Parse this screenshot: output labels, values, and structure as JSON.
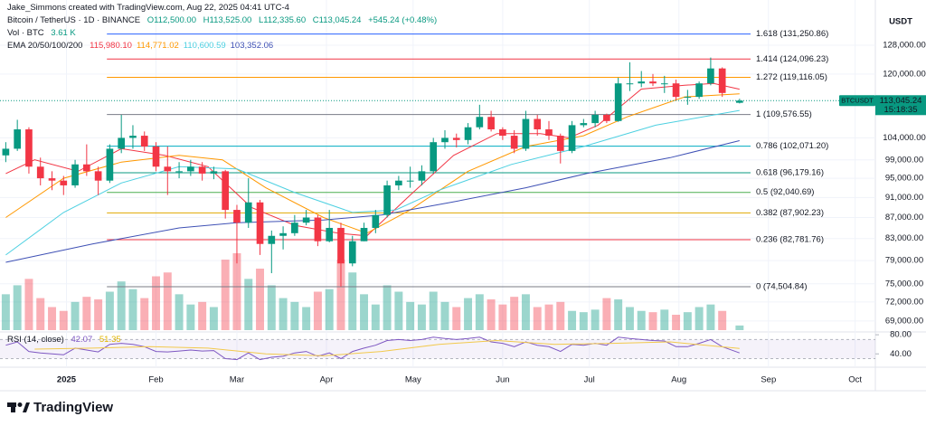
{
  "chart_data": {
    "type": "candlestick",
    "scale": "log",
    "header": {
      "author": "Jake_Simmons created with TradingView.com, Aug 22, 2025 04:41 UTC-4",
      "symbol": "Bitcoin / TetherUS · 1D · BINANCE",
      "ohlc": [
        "O112,500.00",
        "H113,525.00",
        "L112,335.60",
        "C113,045.24",
        "+545.24 (+0.48%)"
      ],
      "vol_label": "Vol · BTC",
      "vol_value": "3.61 K",
      "ema_label": "EMA 20/50/100/200"
    },
    "currency": "USDT",
    "up_color": "#089981",
    "down_color": "#f23645",
    "xlim": [
      -2,
      301
    ],
    "xticks": [
      {
        "value": 21,
        "label": "2025"
      },
      {
        "value": 52,
        "label": "Feb"
      },
      {
        "value": 80,
        "label": "Mar"
      },
      {
        "value": 111,
        "label": "Apr"
      },
      {
        "value": 141,
        "label": "May"
      },
      {
        "value": 172,
        "label": "Jun"
      },
      {
        "value": 202,
        "label": "Jul"
      },
      {
        "value": 233,
        "label": "Aug"
      },
      {
        "value": 264,
        "label": "Sep"
      },
      {
        "value": 294,
        "label": "Oct"
      }
    ],
    "ylim": [
      67600,
      137400
    ],
    "yticks": [
      {
        "value": 128000,
        "label": "128,000.00"
      },
      {
        "value": 120000,
        "label": "120,000.00"
      },
      {
        "value": 104000,
        "label": "104,000.00"
      },
      {
        "value": 99000,
        "label": "99,000.00"
      },
      {
        "value": 95000,
        "label": "95,000.00"
      },
      {
        "value": 91000,
        "label": "91,000.00"
      },
      {
        "value": 87000,
        "label": "87,000.00"
      },
      {
        "value": 83000,
        "label": "83,000.00"
      },
      {
        "value": 79000,
        "label": "79,000.00"
      },
      {
        "value": 75000,
        "label": "75,000.00"
      },
      {
        "value": 72000,
        "label": "72,000.00"
      },
      {
        "value": 69000,
        "label": "69,000.00"
      }
    ],
    "x": [
      0,
      4,
      8,
      12,
      16,
      20,
      24,
      28,
      32,
      36,
      40,
      44,
      48,
      52,
      56,
      60,
      64,
      68,
      72,
      76,
      80,
      84,
      88,
      92,
      96,
      100,
      104,
      108,
      112,
      116,
      120,
      124,
      128,
      132,
      136,
      140,
      144,
      148,
      152,
      156,
      160,
      164,
      168,
      172,
      176,
      180,
      184,
      188,
      192,
      196,
      200,
      204,
      208,
      212,
      216,
      220,
      224,
      228,
      232,
      236,
      240,
      244,
      248,
      254
    ],
    "open": [
      100000,
      101500,
      106000,
      97500,
      95000,
      94500,
      93500,
      98000,
      96500,
      94500,
      101500,
      104000,
      104500,
      102000,
      97500,
      96500,
      96500,
      97500,
      96000,
      96500,
      88500,
      86000,
      90000,
      82000,
      83500,
      84000,
      86000,
      87000,
      82500,
      85000,
      78500,
      82500,
      85000,
      87500,
      93500,
      94500,
      94500,
      96500,
      103000,
      104000,
      103500,
      106500,
      109000,
      106000,
      104500,
      101500,
      108500,
      106000,
      104500,
      101000,
      107000,
      107500,
      109500,
      108000,
      117500,
      117500,
      118000,
      117500,
      117500,
      114000,
      114000,
      117500,
      121500,
      112500
    ],
    "high": [
      103000,
      108300,
      106500,
      99500,
      96500,
      95500,
      99000,
      102500,
      97500,
      102500,
      109500,
      107000,
      105500,
      103000,
      102000,
      98500,
      99000,
      98500,
      97500,
      96800,
      89500,
      95000,
      90500,
      84500,
      85300,
      87500,
      88500,
      87500,
      88500,
      86000,
      83500,
      86000,
      88500,
      94500,
      95500,
      97500,
      97800,
      104000,
      105800,
      105000,
      107500,
      112000,
      110500,
      106500,
      105800,
      110500,
      109500,
      108000,
      105000,
      108000,
      108500,
      110500,
      109800,
      119000,
      123200,
      120800,
      120000,
      119500,
      118500,
      115800,
      118000,
      124500,
      121800,
      113525
    ],
    "low": [
      98500,
      101000,
      96000,
      93500,
      92500,
      91500,
      93000,
      95500,
      91500,
      94000,
      100500,
      101500,
      101000,
      96500,
      91500,
      95000,
      95500,
      94500,
      94800,
      86800,
      78500,
      85000,
      80000,
      76800,
      81000,
      83500,
      85500,
      81600,
      82300,
      74500,
      78000,
      82500,
      84000,
      87000,
      92500,
      93000,
      93500,
      96000,
      101500,
      101800,
      102500,
      106000,
      105500,
      103500,
      100500,
      101000,
      104500,
      103500,
      98200,
      100500,
      106500,
      106500,
      107500,
      107800,
      115500,
      116500,
      116800,
      115000,
      113000,
      112000,
      113500,
      117000,
      114000,
      112335.6
    ],
    "close": [
      101500,
      106000,
      97500,
      95000,
      94500,
      93500,
      98000,
      96500,
      94500,
      101500,
      104000,
      104500,
      102000,
      97500,
      96500,
      96500,
      97500,
      96000,
      96500,
      88500,
      86000,
      90000,
      82000,
      83500,
      84000,
      86000,
      87000,
      82500,
      85000,
      78500,
      82500,
      85000,
      87500,
      93500,
      94500,
      94500,
      96500,
      103000,
      104000,
      103500,
      106500,
      109000,
      106000,
      104500,
      101500,
      108500,
      106000,
      104500,
      101000,
      107000,
      107500,
      109500,
      108000,
      117500,
      117500,
      118000,
      117500,
      117500,
      114000,
      114000,
      117500,
      121500,
      115000,
      113045.24
    ],
    "volume": [
      28,
      35,
      40,
      25,
      18,
      15,
      22,
      26,
      24,
      30,
      38,
      32,
      25,
      42,
      45,
      28,
      20,
      22,
      18,
      55,
      60,
      40,
      48,
      35,
      25,
      22,
      18,
      30,
      32,
      55,
      45,
      28,
      20,
      35,
      30,
      22,
      20,
      30,
      22,
      18,
      25,
      28,
      24,
      20,
      26,
      28,
      18,
      20,
      22,
      15,
      14,
      16,
      25,
      24,
      18,
      15,
      14,
      16,
      12,
      14,
      18,
      20,
      15,
      3.61
    ],
    "ema": [
      {
        "color": "#f23645",
        "value_label": "115,980.10",
        "x": [
          0,
          10,
          25,
          40,
          55,
          70,
          85,
          100,
          115,
          125,
          140,
          155,
          170,
          185,
          195,
          205,
          220,
          235,
          245,
          254
        ],
        "values": [
          96000,
          99000,
          96500,
          101500,
          100000,
          97500,
          89000,
          85500,
          84000,
          83500,
          91500,
          100000,
          105000,
          105000,
          104000,
          107000,
          116000,
          117000,
          117500,
          115980.1
        ]
      },
      {
        "color": "#ff9800",
        "value_label": "114,771.02",
        "x": [
          0,
          20,
          40,
          60,
          75,
          90,
          110,
          125,
          140,
          160,
          180,
          200,
          215,
          235,
          254
        ],
        "values": [
          87000,
          95000,
          98500,
          100000,
          99000,
          93000,
          87000,
          84000,
          88500,
          96500,
          102000,
          104500,
          109000,
          114000,
          114771.02
        ]
      },
      {
        "color": "#4dd0e1",
        "value_label": "110,600.59",
        "x": [
          0,
          20,
          40,
          60,
          80,
          100,
          120,
          135,
          150,
          175,
          200,
          225,
          254
        ],
        "values": [
          80000,
          88000,
          94000,
          97500,
          97000,
          92000,
          88000,
          88500,
          92500,
          98000,
          102000,
          107000,
          110600.59
        ]
      },
      {
        "color": "#3f51b5",
        "value_label": "103,352.06",
        "x": [
          0,
          30,
          60,
          80,
          110,
          130,
          154,
          180,
          201,
          230,
          254
        ],
        "values": [
          78700,
          82000,
          85000,
          86000,
          86500,
          87500,
          90000,
          93000,
          96000,
          99500,
          103352.06
        ]
      }
    ],
    "fib": {
      "start": 35,
      "levels": [
        {
          "value": 131250.86,
          "label": "1.618 (131,250.86)",
          "color": "#2962ff"
        },
        {
          "value": 124096.23,
          "label": "1.414 (124,096.23)",
          "color": "#f23645"
        },
        {
          "value": 119116.05,
          "label": "1.272 (119,116.05)",
          "color": "#ff9800"
        },
        {
          "value": 109576.55,
          "label": "1 (109,576.55)",
          "color": "#787b86"
        },
        {
          "value": 102071.2,
          "label": "0.786 (102,071.20)",
          "color": "#00acc1"
        },
        {
          "value": 96179.16,
          "label": "0.618 (96,179.16)",
          "color": "#089981"
        },
        {
          "value": 92040.69,
          "label": "0.5 (92,040.69)",
          "color": "#4caf50"
        },
        {
          "value": 87902.23,
          "label": "0.382 (87,902.23)",
          "color": "#e0a800"
        },
        {
          "value": 82781.76,
          "label": "0.236 (82,781.76)",
          "color": "#f23645"
        },
        {
          "value": 74504.84,
          "label": "0 (74,504.84)",
          "color": "#787b86"
        }
      ]
    },
    "last_price": {
      "symbol": "BTCUSDT",
      "value": 113045.24,
      "label": "113,045.24",
      "countdown": "15:18:35"
    },
    "rsi": {
      "label": "RSI (14, close)",
      "value_label": "42.07",
      "ma_label": "51.35",
      "color": "#7e57c2",
      "ma_color": "#f2c94c",
      "ylim": [
        14,
        84
      ],
      "yticks": [
        {
          "value": 80,
          "label": "80.00"
        },
        {
          "value": 40,
          "label": "40.00"
        }
      ],
      "bands": [
        30,
        70
      ],
      "values": [
        58,
        65,
        45,
        42,
        40,
        38,
        52,
        48,
        44,
        60,
        62,
        60,
        55,
        45,
        44,
        46,
        48,
        46,
        47,
        30,
        28,
        42,
        28,
        33,
        35,
        42,
        45,
        35,
        42,
        30,
        45,
        52,
        58,
        68,
        70,
        68,
        70,
        75,
        72,
        70,
        72,
        75,
        65,
        62,
        55,
        65,
        58,
        55,
        45,
        60,
        58,
        62,
        58,
        75,
        72,
        70,
        68,
        67,
        55,
        55,
        62,
        70,
        55,
        42.07
      ],
      "ma_x": [
        10,
        30,
        50,
        70,
        90,
        110,
        130,
        150,
        170,
        190,
        210,
        230,
        254
      ],
      "ma_values": [
        50,
        52,
        55,
        52,
        40,
        36,
        45,
        60,
        68,
        60,
        62,
        65,
        51.35
      ]
    },
    "footer": {
      "brand": "TradingView"
    }
  }
}
